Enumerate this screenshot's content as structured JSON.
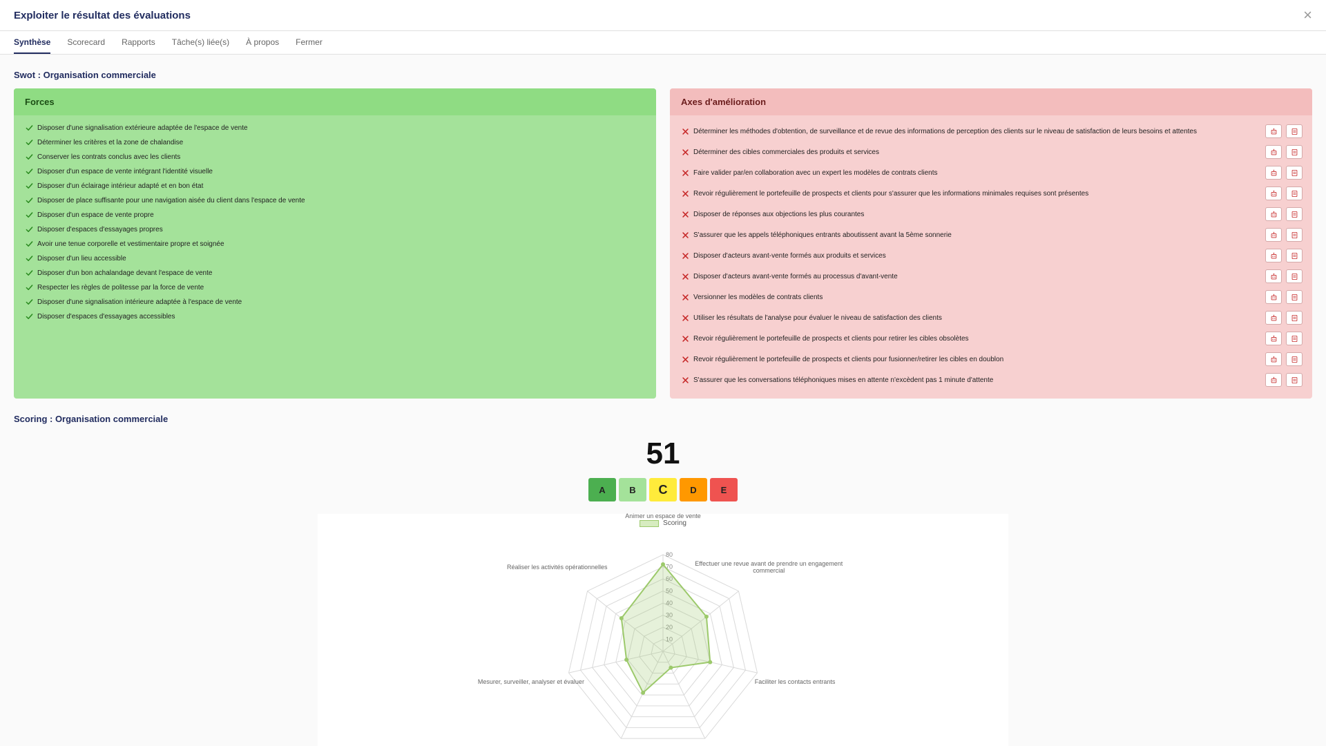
{
  "header": {
    "title": "Exploiter le résultat des évaluations"
  },
  "tabs": [
    {
      "label": "Synthèse",
      "active": true
    },
    {
      "label": "Scorecard",
      "active": false
    },
    {
      "label": "Rapports",
      "active": false
    },
    {
      "label": "Tâche(s) liée(s)",
      "active": false
    },
    {
      "label": "À propos",
      "active": false
    },
    {
      "label": "Fermer",
      "active": false
    }
  ],
  "swot": {
    "title": "Swot : Organisation commerciale",
    "forces": {
      "header": "Forces",
      "header_bg": "#8fdc83",
      "body_bg": "#a4e29a",
      "icon_color": "#2a8a1f",
      "items": [
        "Disposer d'une signalisation extérieure adaptée de l'espace de vente",
        "Déterminer les critères et la zone de chalandise",
        "Conserver les contrats conclus avec les clients",
        "Disposer d'un espace de vente intégrant l'identité visuelle",
        "Disposer d'un éclairage intérieur adapté et en bon état",
        "Disposer de place suffisante pour une navigation aisée du client dans l'espace de vente",
        "Disposer d'un espace de vente propre",
        "Disposer d'espaces d'essayages propres",
        "Avoir une tenue corporelle et vestimentaire propre et soignée",
        "Disposer d'un lieu accessible",
        "Disposer d'un bon achalandage devant l'espace de vente",
        "Respecter les règles de politesse par la force de vente",
        "Disposer d'une signalisation intérieure adaptée à l'espace de vente",
        "Disposer d'espaces d'essayages accessibles"
      ]
    },
    "axes": {
      "header": "Axes d'amélioration",
      "header_bg": "#f3bdbd",
      "body_bg": "#f7d0d0",
      "icon_color": "#c62828",
      "action_border": "#d5a8a8",
      "items": [
        "Déterminer les méthodes d'obtention, de surveillance et de revue des informations de perception des clients sur le niveau de satisfaction de leurs besoins et attentes",
        "Déterminer des cibles commerciales des produits et services",
        "Faire valider par/en collaboration avec un expert les modèles de contrats clients",
        "Revoir régulièrement le portefeuille de prospects et clients pour s'assurer que les informations minimales requises sont présentes",
        "Disposer de réponses aux objections les plus courantes",
        "S'assurer que les appels téléphoniques entrants aboutissent avant la 5ème sonnerie",
        "Disposer d'acteurs avant-vente formés aux produits et services",
        "Disposer d'acteurs avant-vente formés au processus d'avant-vente",
        "Versionner les modèles de contrats clients",
        "Utiliser les résultats de l'analyse pour évaluer le niveau de satisfaction des clients",
        "Revoir régulièrement le portefeuille de prospects et clients pour retirer les cibles obsolètes",
        "Revoir régulièrement le portefeuille de prospects et clients pour fusionner/retirer les cibles en doublon",
        "S'assurer que les conversations téléphoniques mises en attente n'excèdent pas 1 minute d'attente"
      ]
    }
  },
  "scoring": {
    "title": "Scoring : Organisation commerciale",
    "score": "51",
    "grades": [
      {
        "letter": "A",
        "bg": "#4caf50",
        "current": false
      },
      {
        "letter": "B",
        "bg": "#a4e29a",
        "current": false
      },
      {
        "letter": "C",
        "bg": "#ffeb3b",
        "current": true
      },
      {
        "letter": "D",
        "bg": "#ff9800",
        "current": false
      },
      {
        "letter": "E",
        "bg": "#ef5350",
        "current": false
      }
    ],
    "radar": {
      "legend": "Scoring",
      "legend_fill": "#d7ecc0",
      "legend_stroke": "#9cc96b",
      "bg": "#ffffff",
      "grid_color": "#d9d9d9",
      "line_color": "#9cc96b",
      "fill_color": "rgba(156,201,107,0.25)",
      "label_color": "#666666",
      "tick_color": "#888888",
      "max": 80,
      "tick_step": 10,
      "axes": [
        {
          "label": "Animer un espace de vente",
          "value": 72
        },
        {
          "label": "Effectuer une revue avant de prendre un engagement commercial",
          "value": 46
        },
        {
          "label": "Faciliter les contacts entrants",
          "value": 40
        },
        {
          "label": "",
          "value": 15
        },
        {
          "label": "",
          "value": 38
        },
        {
          "label": "Mesurer, surveiller, analyser et évaluer",
          "value": 31
        },
        {
          "label": "Réaliser les activités opérationnelles",
          "value": 44
        }
      ]
    }
  }
}
